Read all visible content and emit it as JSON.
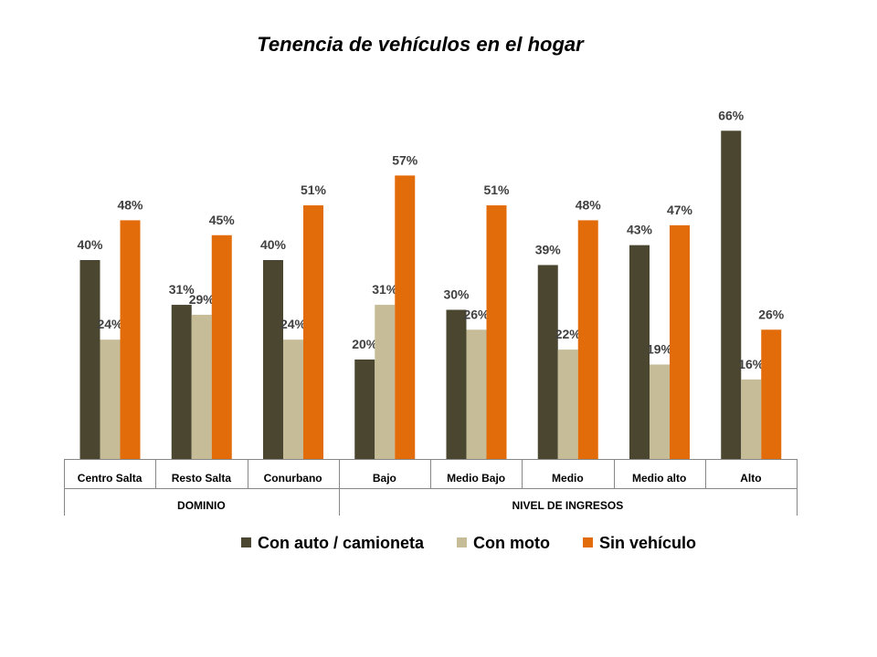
{
  "chart_data": {
    "type": "bar",
    "title": "Tenencia de vehículos en el hogar",
    "categories": [
      "Centro Salta",
      "Resto Salta",
      "Conurbano",
      "Bajo",
      "Medio Bajo",
      "Medio",
      "Medio alto",
      "Alto"
    ],
    "groups": [
      {
        "label": "DOMINIO",
        "categories": [
          "Centro Salta",
          "Resto Salta",
          "Conurbano"
        ]
      },
      {
        "label": "NIVEL DE INGRESOS",
        "categories": [
          "Bajo",
          "Medio Bajo",
          "Medio",
          "Medio alto",
          "Alto"
        ]
      }
    ],
    "series": [
      {
        "name": "Con auto / camioneta",
        "color": "#4b4630",
        "values": [
          40,
          31,
          40,
          20,
          30,
          39,
          43,
          66
        ],
        "labels": [
          "40%",
          "31%",
          "40%",
          "20%",
          "30%",
          "39%",
          "43%",
          "66%"
        ]
      },
      {
        "name": "Con moto",
        "color": "#c6bd98",
        "values": [
          24,
          29,
          24,
          31,
          26,
          22,
          19,
          16
        ],
        "labels": [
          "24%",
          "29%",
          "24%",
          "31%",
          "26%",
          "22%",
          "19%",
          "16%"
        ]
      },
      {
        "name": "Sin vehículo",
        "color": "#e36c0a",
        "values": [
          48,
          45,
          51,
          57,
          51,
          48,
          47,
          26
        ],
        "labels": [
          "48%",
          "45%",
          "51%",
          "57%",
          "51%",
          "48%",
          "47%",
          "26%"
        ]
      }
    ],
    "unit": "%",
    "ylim": [
      0,
      68
    ],
    "grid": false,
    "legend_position": "bottom"
  }
}
